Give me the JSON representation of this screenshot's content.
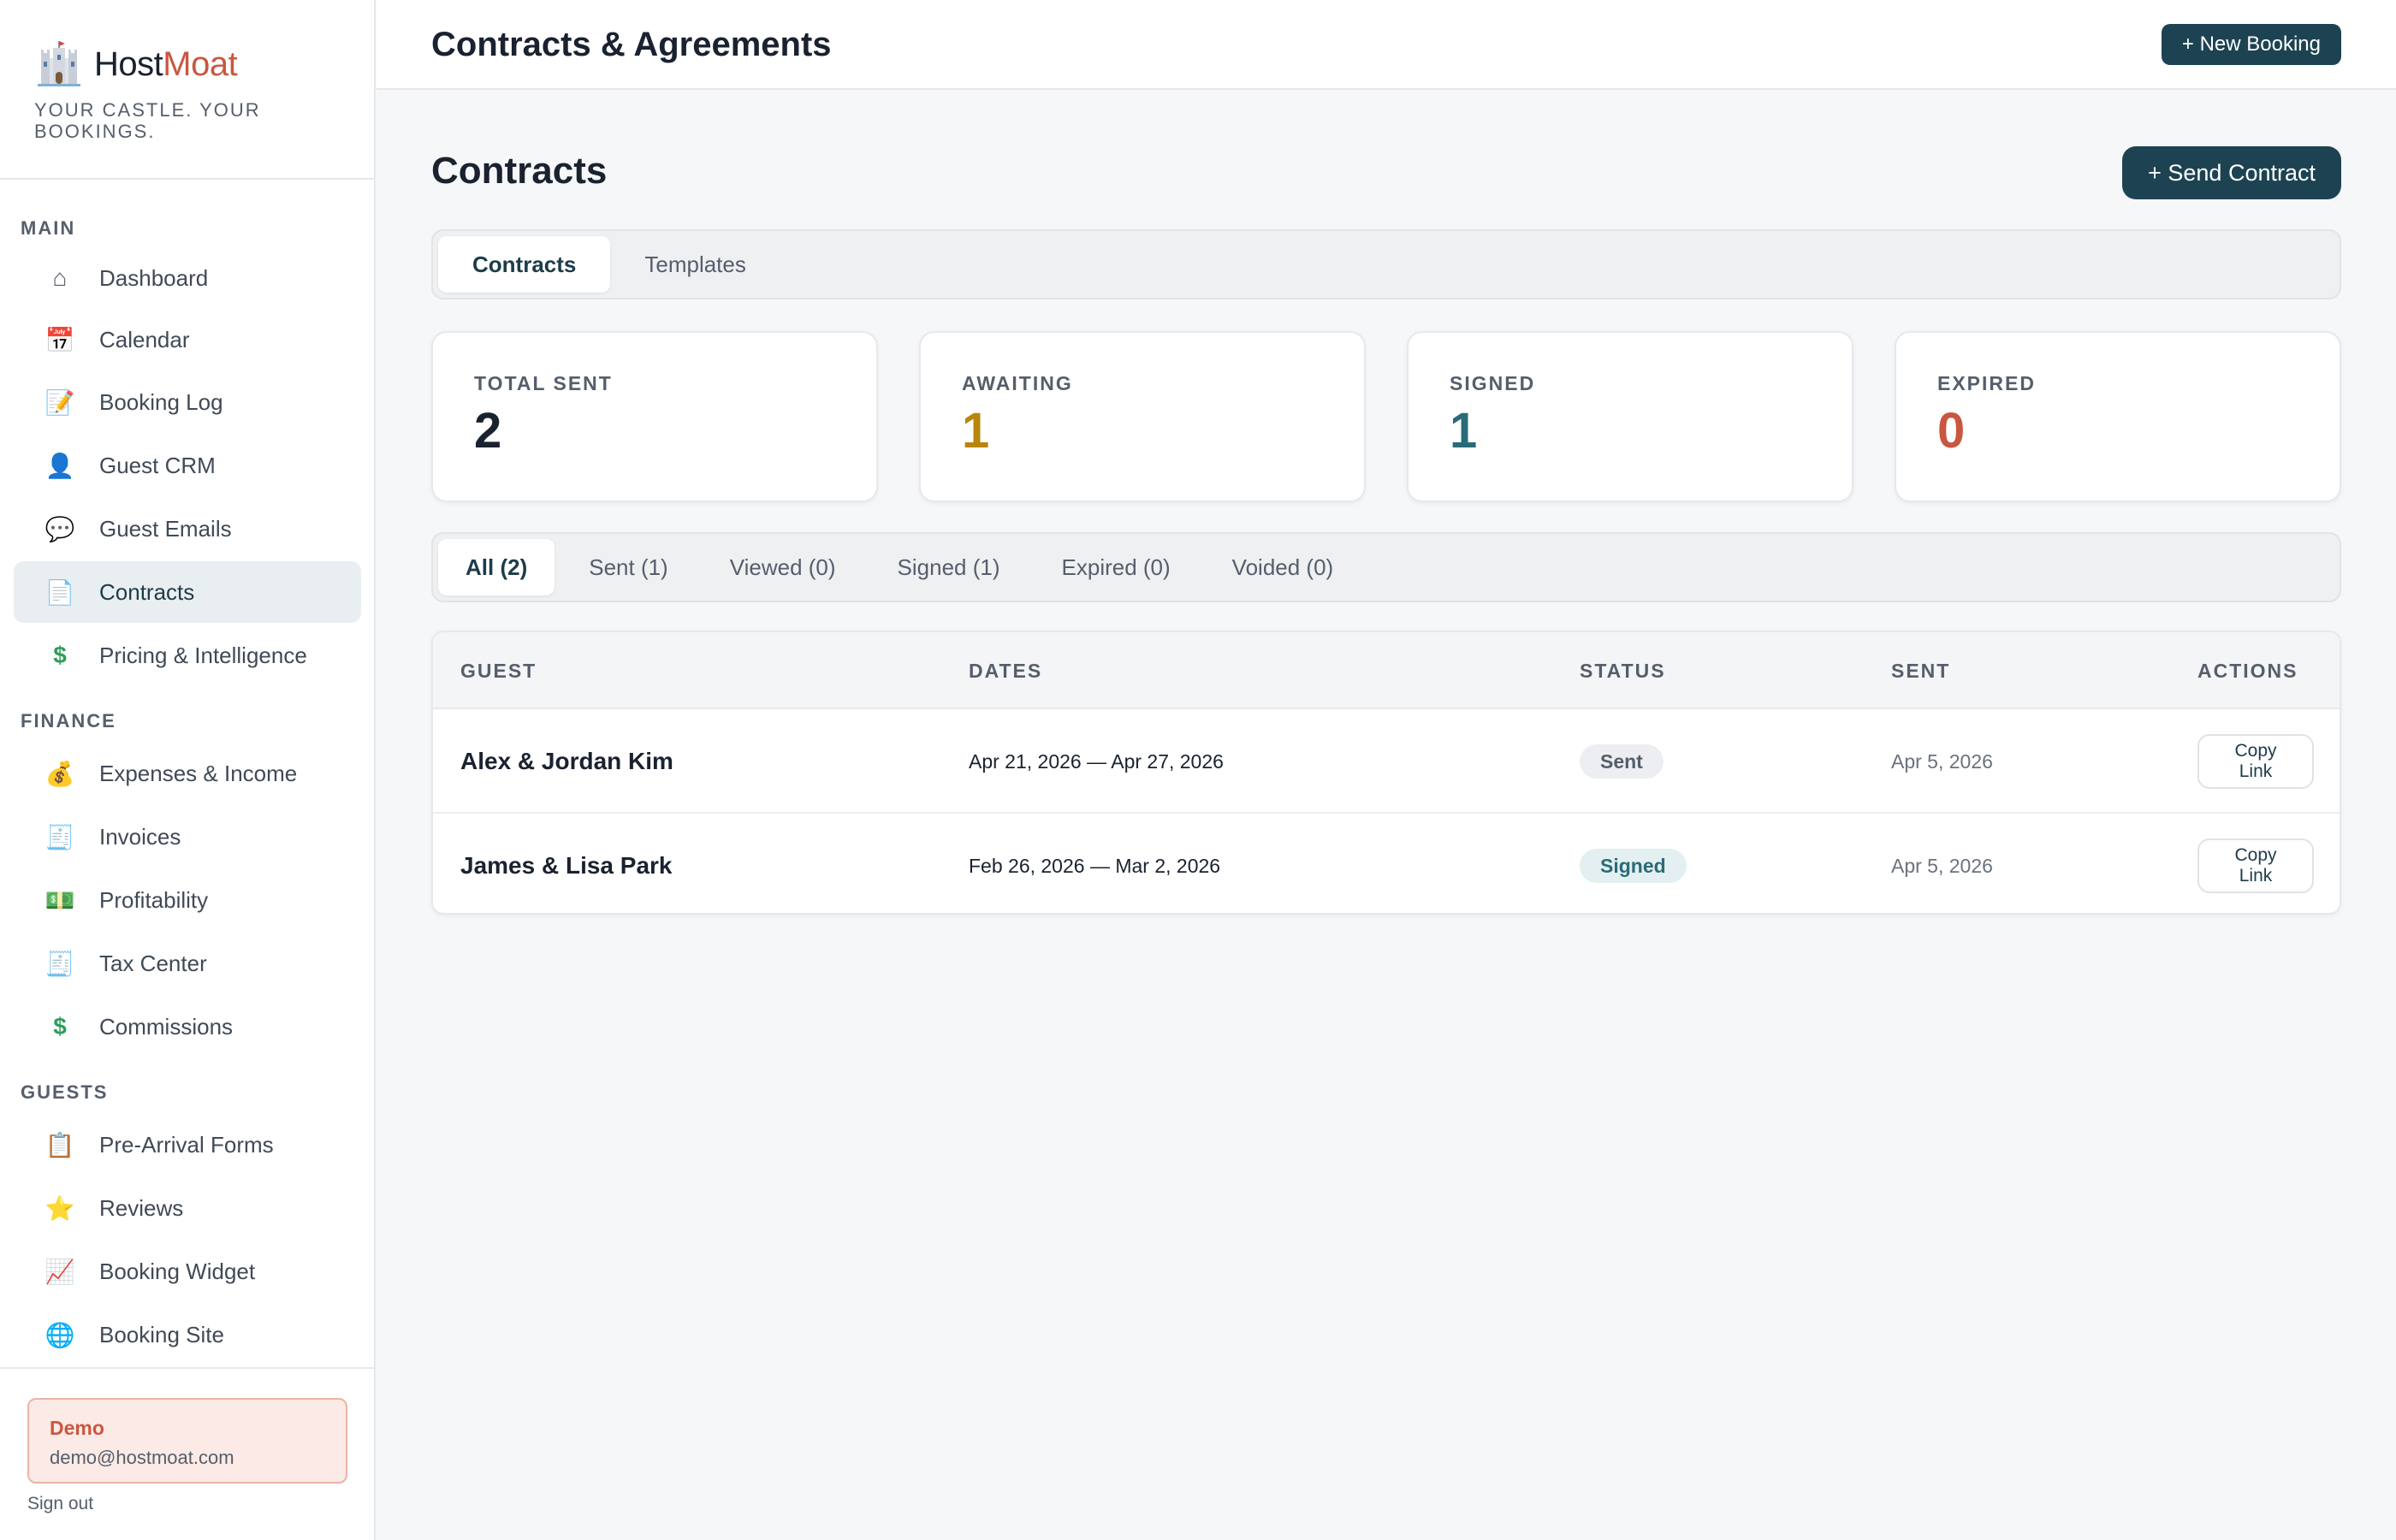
{
  "brand": {
    "name_part1": "Host",
    "name_part2": "Moat",
    "tagline": "YOUR CASTLE. YOUR BOOKINGS.",
    "logo_icon": "castle-icon"
  },
  "sidebar": {
    "sections": [
      {
        "label": "MAIN",
        "items": [
          {
            "label": "Dashboard",
            "icon": "home-icon",
            "glyph": "⌂",
            "active": false
          },
          {
            "label": "Calendar",
            "icon": "calendar-icon",
            "glyph": "📅",
            "active": false
          },
          {
            "label": "Booking Log",
            "icon": "memo-icon",
            "glyph": "📝",
            "active": false
          },
          {
            "label": "Guest CRM",
            "icon": "person-icon",
            "glyph": "👤",
            "active": false
          },
          {
            "label": "Guest Emails",
            "icon": "speech-bubble-icon",
            "glyph": "💬",
            "active": false
          },
          {
            "label": "Contracts",
            "icon": "document-icon",
            "glyph": "📄",
            "active": true
          },
          {
            "label": "Pricing & Intelligence",
            "icon": "dollar-icon",
            "glyph": "$",
            "active": false
          }
        ]
      },
      {
        "label": "FINANCE",
        "items": [
          {
            "label": "Expenses & Income",
            "icon": "money-bag-icon",
            "glyph": "💰",
            "active": false
          },
          {
            "label": "Invoices",
            "icon": "receipt-icon",
            "glyph": "🧾",
            "active": false
          },
          {
            "label": "Profitability",
            "icon": "banknote-icon",
            "glyph": "💵",
            "active": false
          },
          {
            "label": "Tax Center",
            "icon": "receipt-icon",
            "glyph": "🧾",
            "active": false
          },
          {
            "label": "Commissions",
            "icon": "dollar-icon",
            "glyph": "$",
            "active": false
          }
        ]
      },
      {
        "label": "GUESTS",
        "items": [
          {
            "label": "Pre-Arrival Forms",
            "icon": "clipboard-icon",
            "glyph": "📋",
            "active": false
          },
          {
            "label": "Reviews",
            "icon": "star-icon",
            "glyph": "⭐",
            "active": false
          },
          {
            "label": "Booking Widget",
            "icon": "chart-icon",
            "glyph": "📈",
            "active": false
          },
          {
            "label": "Booking Site",
            "icon": "globe-icon",
            "glyph": "🌐",
            "active": false
          }
        ]
      }
    ],
    "user": {
      "name": "Demo",
      "email": "demo@hostmoat.com",
      "signout": "Sign out"
    }
  },
  "header": {
    "title": "Contracts & Agreements",
    "new_booking": "+ New Booking"
  },
  "main": {
    "title": "Contracts",
    "send_button": "+ Send Contract",
    "tabs": [
      {
        "label": "Contracts",
        "active": true
      },
      {
        "label": "Templates",
        "active": false
      }
    ],
    "stats": [
      {
        "label": "TOTAL SENT",
        "value": "2",
        "color": "#1a2230"
      },
      {
        "label": "AWAITING",
        "value": "1",
        "color": "#b8860b"
      },
      {
        "label": "SIGNED",
        "value": "1",
        "color": "#2a6b78"
      },
      {
        "label": "EXPIRED",
        "value": "0",
        "color": "#c9573f"
      }
    ],
    "filters": [
      {
        "label": "All (2)",
        "active": true
      },
      {
        "label": "Sent (1)",
        "active": false
      },
      {
        "label": "Viewed (0)",
        "active": false
      },
      {
        "label": "Signed (1)",
        "active": false
      },
      {
        "label": "Expired (0)",
        "active": false
      },
      {
        "label": "Voided (0)",
        "active": false
      }
    ],
    "table": {
      "columns": [
        "GUEST",
        "DATES",
        "STATUS",
        "SENT",
        "ACTIONS"
      ],
      "rows": [
        {
          "guest": "Alex & Jordan Kim",
          "dates": "Apr 21, 2026 — Apr 27, 2026",
          "status": "Sent",
          "sent": "Apr 5, 2026",
          "action": "Copy Link"
        },
        {
          "guest": "James & Lisa Park",
          "dates": "Feb 26, 2026 — Mar 2, 2026",
          "status": "Signed",
          "sent": "Apr 5, 2026",
          "action": "Copy Link"
        }
      ]
    }
  }
}
